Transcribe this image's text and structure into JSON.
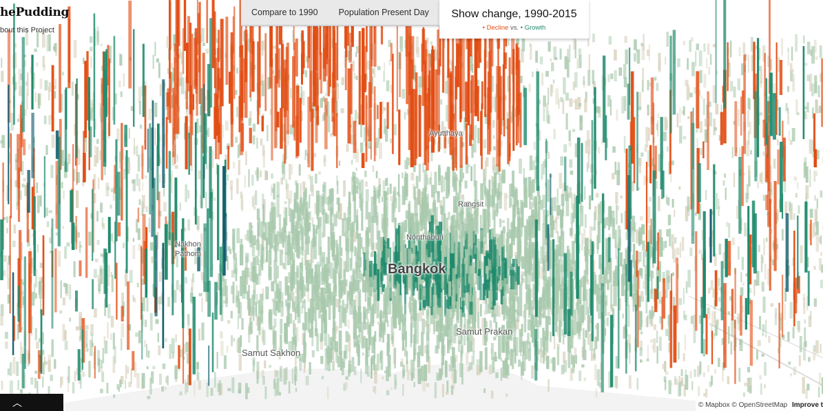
{
  "brand": {
    "logo_text": "hePudding",
    "about_link": "bout this Project"
  },
  "toolbar": {
    "compare_label": "Compare to 1990",
    "present_label": "Population Present Day",
    "active_title": "Show change, 1990-2015",
    "legend_decline": "Decline",
    "legend_vs": "vs.",
    "legend_growth": "Growth"
  },
  "places": {
    "bangkok": "Bangkok",
    "ayutthaya": "Ayutthaya",
    "rangsit": "Rangsit",
    "nonthaburi": "Nonthaburi",
    "nakhon_pathom_1": "Nakhon",
    "nakhon_pathom_2": "Pathom",
    "samut_prakan": "Samut Prakan",
    "samut_sakhon": "Samut Sakhon"
  },
  "attribution": {
    "mapbox": "© Mapbox",
    "osm": "© OpenStreetMap",
    "improve": "Improve t"
  },
  "colors": {
    "decline": "#e24d13",
    "growth_light": "#a9c9ad",
    "growth_dark": "#1f8a6c",
    "growth_deep": "#0e5a6a"
  }
}
